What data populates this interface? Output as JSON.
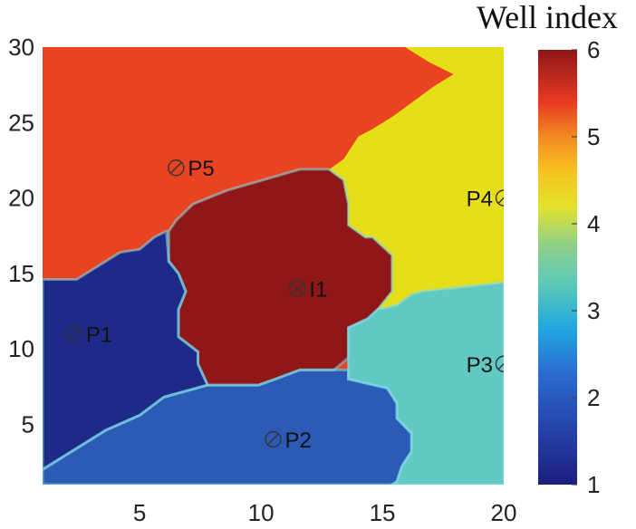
{
  "chart_data": {
    "type": "heatmap",
    "title": "",
    "xlabel": "",
    "ylabel": "",
    "xlim": [
      1,
      20
    ],
    "ylim": [
      1,
      30
    ],
    "x_ticks": [
      "5",
      "10",
      "15",
      "20"
    ],
    "y_ticks": [
      "5",
      "10",
      "15",
      "20",
      "25",
      "30"
    ],
    "colorbar": {
      "title": "Well index",
      "range": [
        1,
        6
      ],
      "ticks": [
        "1",
        "2",
        "3",
        "4",
        "5",
        "6"
      ]
    },
    "regions": [
      {
        "name": "I1",
        "value": 6,
        "color": "#8f1717",
        "polygon": [
          [
            6.2,
            17.8
          ],
          [
            6.5,
            18.5
          ],
          [
            7.2,
            19.6
          ],
          [
            8.6,
            20.5
          ],
          [
            11.6,
            21.9
          ],
          [
            12.8,
            21.9
          ],
          [
            13.4,
            21.2
          ],
          [
            13.6,
            19.6
          ],
          [
            13.6,
            18.2
          ],
          [
            14.3,
            17.4
          ],
          [
            14.6,
            17.4
          ],
          [
            15.4,
            16.2
          ],
          [
            15.4,
            13.8
          ],
          [
            14.8,
            12.6
          ],
          [
            14.4,
            12.0
          ],
          [
            13.6,
            11.4
          ],
          [
            13.6,
            9.4
          ],
          [
            13.0,
            8.6
          ],
          [
            11.6,
            8.6
          ],
          [
            10.6,
            8.0
          ],
          [
            9.9,
            7.6
          ],
          [
            7.8,
            7.6
          ],
          [
            7.4,
            9.0
          ],
          [
            7.4,
            9.8
          ],
          [
            6.6,
            10.8
          ],
          [
            6.6,
            12.6
          ],
          [
            6.9,
            13.8
          ],
          [
            6.6,
            15.0
          ],
          [
            6.2,
            15.8
          ]
        ]
      },
      {
        "name": "P1",
        "value": 1,
        "color": "#1e2a88",
        "polygon": [
          [
            1,
            14.6
          ],
          [
            2.4,
            14.6
          ],
          [
            3.0,
            15.2
          ],
          [
            4.2,
            16.4
          ],
          [
            5.0,
            16.6
          ],
          [
            5.6,
            17.4
          ],
          [
            6.1,
            17.8
          ],
          [
            6.2,
            15.8
          ],
          [
            6.6,
            15.0
          ],
          [
            6.9,
            13.8
          ],
          [
            6.6,
            12.6
          ],
          [
            6.6,
            10.8
          ],
          [
            7.4,
            9.8
          ],
          [
            7.4,
            9.0
          ],
          [
            7.8,
            7.6
          ],
          [
            6.0,
            6.8
          ],
          [
            5.0,
            5.6
          ],
          [
            3.6,
            4.6
          ],
          [
            2.6,
            3.6
          ],
          [
            1,
            2.0
          ]
        ]
      },
      {
        "name": "P2",
        "value": 2,
        "color": "#2b5bb5",
        "polygon": [
          [
            1,
            1
          ],
          [
            1,
            2.0
          ],
          [
            2.6,
            3.6
          ],
          [
            3.6,
            4.6
          ],
          [
            5.0,
            5.6
          ],
          [
            6.0,
            6.8
          ],
          [
            7.8,
            7.6
          ],
          [
            9.9,
            7.6
          ],
          [
            10.6,
            8.0
          ],
          [
            11.6,
            8.6
          ],
          [
            13.6,
            8.6
          ],
          [
            13.6,
            8.0
          ],
          [
            15.2,
            7.4
          ],
          [
            15.6,
            6.4
          ],
          [
            15.6,
            5.4
          ],
          [
            16.2,
            4.4
          ],
          [
            16.2,
            3.2
          ],
          [
            15.8,
            2.2
          ],
          [
            15.6,
            1.2
          ],
          [
            15.4,
            1
          ]
        ]
      },
      {
        "name": "P3",
        "value": 3.3,
        "color": "#62c9c2",
        "polygon": [
          [
            13.6,
            9.4
          ],
          [
            13.6,
            11.4
          ],
          [
            14.4,
            12.0
          ],
          [
            14.8,
            12.6
          ],
          [
            15.6,
            12.9
          ],
          [
            16.2,
            13.6
          ],
          [
            16.6,
            13.8
          ],
          [
            20,
            14.4
          ],
          [
            20,
            1
          ],
          [
            15.4,
            1
          ],
          [
            15.6,
            1.2
          ],
          [
            15.8,
            2.2
          ],
          [
            16.2,
            3.2
          ],
          [
            16.2,
            4.4
          ],
          [
            15.6,
            5.4
          ],
          [
            15.6,
            6.4
          ],
          [
            15.2,
            7.4
          ],
          [
            13.6,
            8.0
          ],
          [
            13.6,
            8.6
          ]
        ]
      },
      {
        "name": "P4",
        "value": 4.2,
        "color": "#e5de18",
        "polygon": [
          [
            12.8,
            21.9
          ],
          [
            13.4,
            22.6
          ],
          [
            14.0,
            24.1
          ],
          [
            14.6,
            24.6
          ],
          [
            15.4,
            25.4
          ],
          [
            17.1,
            27.4
          ],
          [
            17.9,
            28.2
          ],
          [
            16.9,
            29.0
          ],
          [
            15.9,
            30
          ],
          [
            20,
            30
          ],
          [
            20,
            14.4
          ],
          [
            16.6,
            13.8
          ],
          [
            16.2,
            13.6
          ],
          [
            15.6,
            12.9
          ],
          [
            14.8,
            12.6
          ],
          [
            15.4,
            13.8
          ],
          [
            15.4,
            16.2
          ],
          [
            14.6,
            17.4
          ],
          [
            14.3,
            17.4
          ],
          [
            13.6,
            18.2
          ],
          [
            13.6,
            19.6
          ],
          [
            13.4,
            21.2
          ]
        ]
      },
      {
        "name": "P5",
        "value": 5.2,
        "color": "#e84422",
        "polygon": [
          [
            1,
            30
          ],
          [
            15.9,
            30
          ],
          [
            16.9,
            29.0
          ],
          [
            17.9,
            28.2
          ],
          [
            17.1,
            27.4
          ],
          [
            15.4,
            25.4
          ],
          [
            14.6,
            24.6
          ],
          [
            14.0,
            24.1
          ],
          [
            13.4,
            22.6
          ],
          [
            12.8,
            21.9
          ],
          [
            11.6,
            21.9
          ],
          [
            8.6,
            20.5
          ],
          [
            7.2,
            19.6
          ],
          [
            6.5,
            18.5
          ],
          [
            6.2,
            17.8
          ],
          [
            6.1,
            17.8
          ],
          [
            5.6,
            17.4
          ],
          [
            5.0,
            16.6
          ],
          [
            4.2,
            16.4
          ],
          [
            3.0,
            15.2
          ],
          [
            2.4,
            14.6
          ],
          [
            1,
            14.6
          ]
        ]
      }
    ],
    "wells": [
      {
        "name": "P5",
        "type": "producer",
        "x": 6.5,
        "y": 22
      },
      {
        "name": "P4",
        "type": "producer",
        "x": 20,
        "y": 20
      },
      {
        "name": "I1",
        "type": "injector",
        "x": 11.5,
        "y": 14
      },
      {
        "name": "P1",
        "type": "producer",
        "x": 2.3,
        "y": 11
      },
      {
        "name": "P3",
        "type": "producer",
        "x": 20,
        "y": 9
      },
      {
        "name": "P2",
        "type": "producer",
        "x": 10.5,
        "y": 4
      }
    ]
  }
}
